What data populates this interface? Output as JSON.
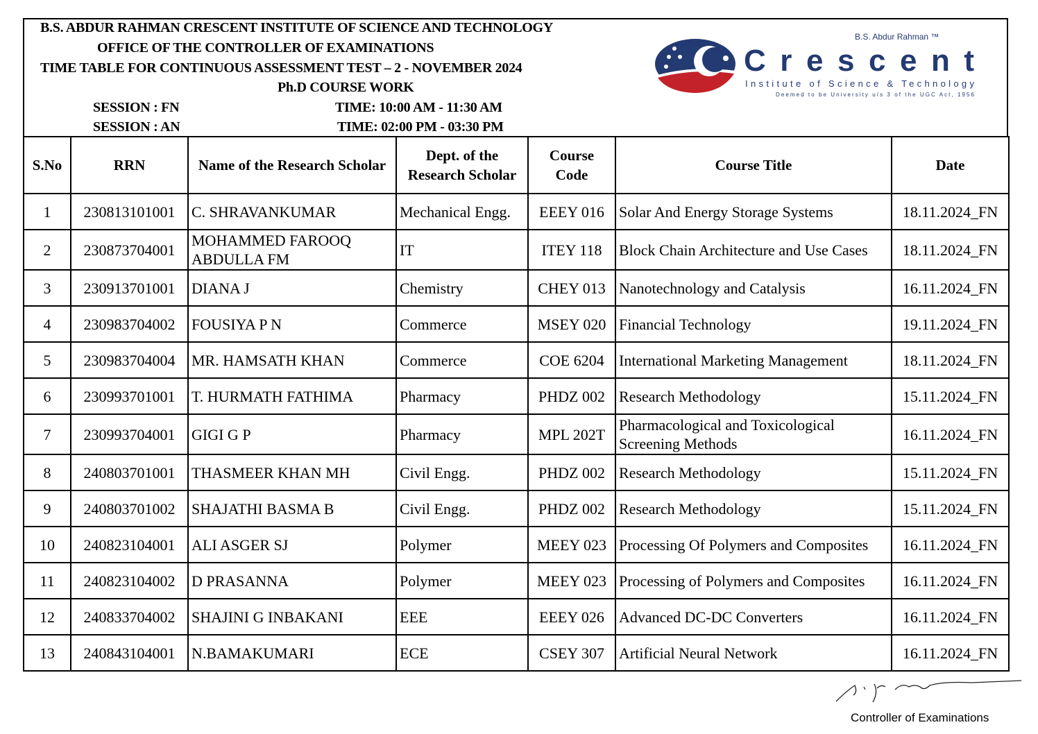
{
  "header": {
    "institute": "B.S. ABDUR RAHMAN CRESCENT INSTITUTE OF SCIENCE AND TECHNOLOGY",
    "office": "OFFICE OF THE CONTROLLER OF EXAMINATIONS",
    "title": "TIME TABLE FOR CONTINUOUS ASSESSMENT TEST – 2 - NOVEMBER 2024",
    "subtitle": "Ph.D COURSE WORK",
    "session_fn": "SESSION : FN",
    "time_fn": "TIME: 10:00 AM - 11:30 AM",
    "session_an": "SESSION : AN",
    "time_an": "TIME: 02:00 PM - 03:30 PM"
  },
  "logo": {
    "top": "B.S. Abdur Rahman ™",
    "name": "Crescent",
    "line": "Institute of Science & Technology",
    "small": "Deemed to be University u/s 3 of the UGC Act, 1956",
    "colors": {
      "blue": "#233a72",
      "red": "#c4222a"
    }
  },
  "table": {
    "columns": [
      "S.No",
      "RRN",
      "Name of the  Research Scholar",
      "Dept. of the Research Scholar",
      "Course Code",
      "Course  Title",
      "Date"
    ],
    "rows": [
      [
        "1",
        "230813101001",
        "C. SHRAVANKUMAR",
        "Mechanical Engg.",
        "EEEY 016",
        "Solar And Energy Storage Systems",
        "18.11.2024_FN"
      ],
      [
        "2",
        "230873704001",
        "MOHAMMED FAROOQ ABDULLA FM",
        "IT",
        "ITEY 118",
        "Block Chain Architecture and Use Cases",
        "18.11.2024_FN"
      ],
      [
        "3",
        "230913701001",
        "DIANA J",
        "Chemistry",
        "CHEY 013",
        "Nanotechnology and Catalysis",
        "16.11.2024_FN"
      ],
      [
        "4",
        "230983704002",
        "FOUSIYA P N",
        "Commerce",
        "MSEY 020",
        "Financial Technology",
        "19.11.2024_FN"
      ],
      [
        "5",
        "230983704004",
        "MR. HAMSATH KHAN",
        "Commerce",
        "COE 6204",
        "International Marketing Management",
        "18.11.2024_FN"
      ],
      [
        "6",
        "230993701001",
        "T. HURMATH FATHIMA",
        "Pharmacy",
        "PHDZ 002",
        "Research Methodology",
        "15.11.2024_FN"
      ],
      [
        "7",
        "230993704001",
        "GIGI G P",
        "Pharmacy",
        "MPL 202T",
        "Pharmacological and Toxicological Screening Methods",
        "16.11.2024_FN"
      ],
      [
        "8",
        "240803701001",
        "THASMEER KHAN MH",
        "Civil Engg.",
        "PHDZ 002",
        "Research Methodology",
        "15.11.2024_FN"
      ],
      [
        "9",
        "240803701002",
        "SHAJATHI BASMA B",
        "Civil Engg.",
        "PHDZ 002",
        "Research Methodology",
        "15.11.2024_FN"
      ],
      [
        "10",
        "240823104001",
        "ALI ASGER SJ",
        "Polymer",
        "MEEY 023",
        "Processing Of Polymers and Composites",
        "16.11.2024_FN"
      ],
      [
        "11",
        "240823104002",
        "D PRASANNA",
        "Polymer",
        "MEEY 023",
        "Processing of Polymers and Composites",
        "16.11.2024_FN"
      ],
      [
        "12",
        "240833704002",
        "SHAJINI G INBAKANI",
        "EEE",
        "EEEY 026",
        "Advanced DC-DC Converters",
        "16.11.2024_FN"
      ],
      [
        "13",
        "240843104001",
        "N.BAMAKUMARI",
        "ECE",
        "CSEY 307",
        "Artificial Neural Network",
        "16.11.2024_FN"
      ]
    ]
  },
  "footer": {
    "signatory": "Controller of Examinations"
  }
}
